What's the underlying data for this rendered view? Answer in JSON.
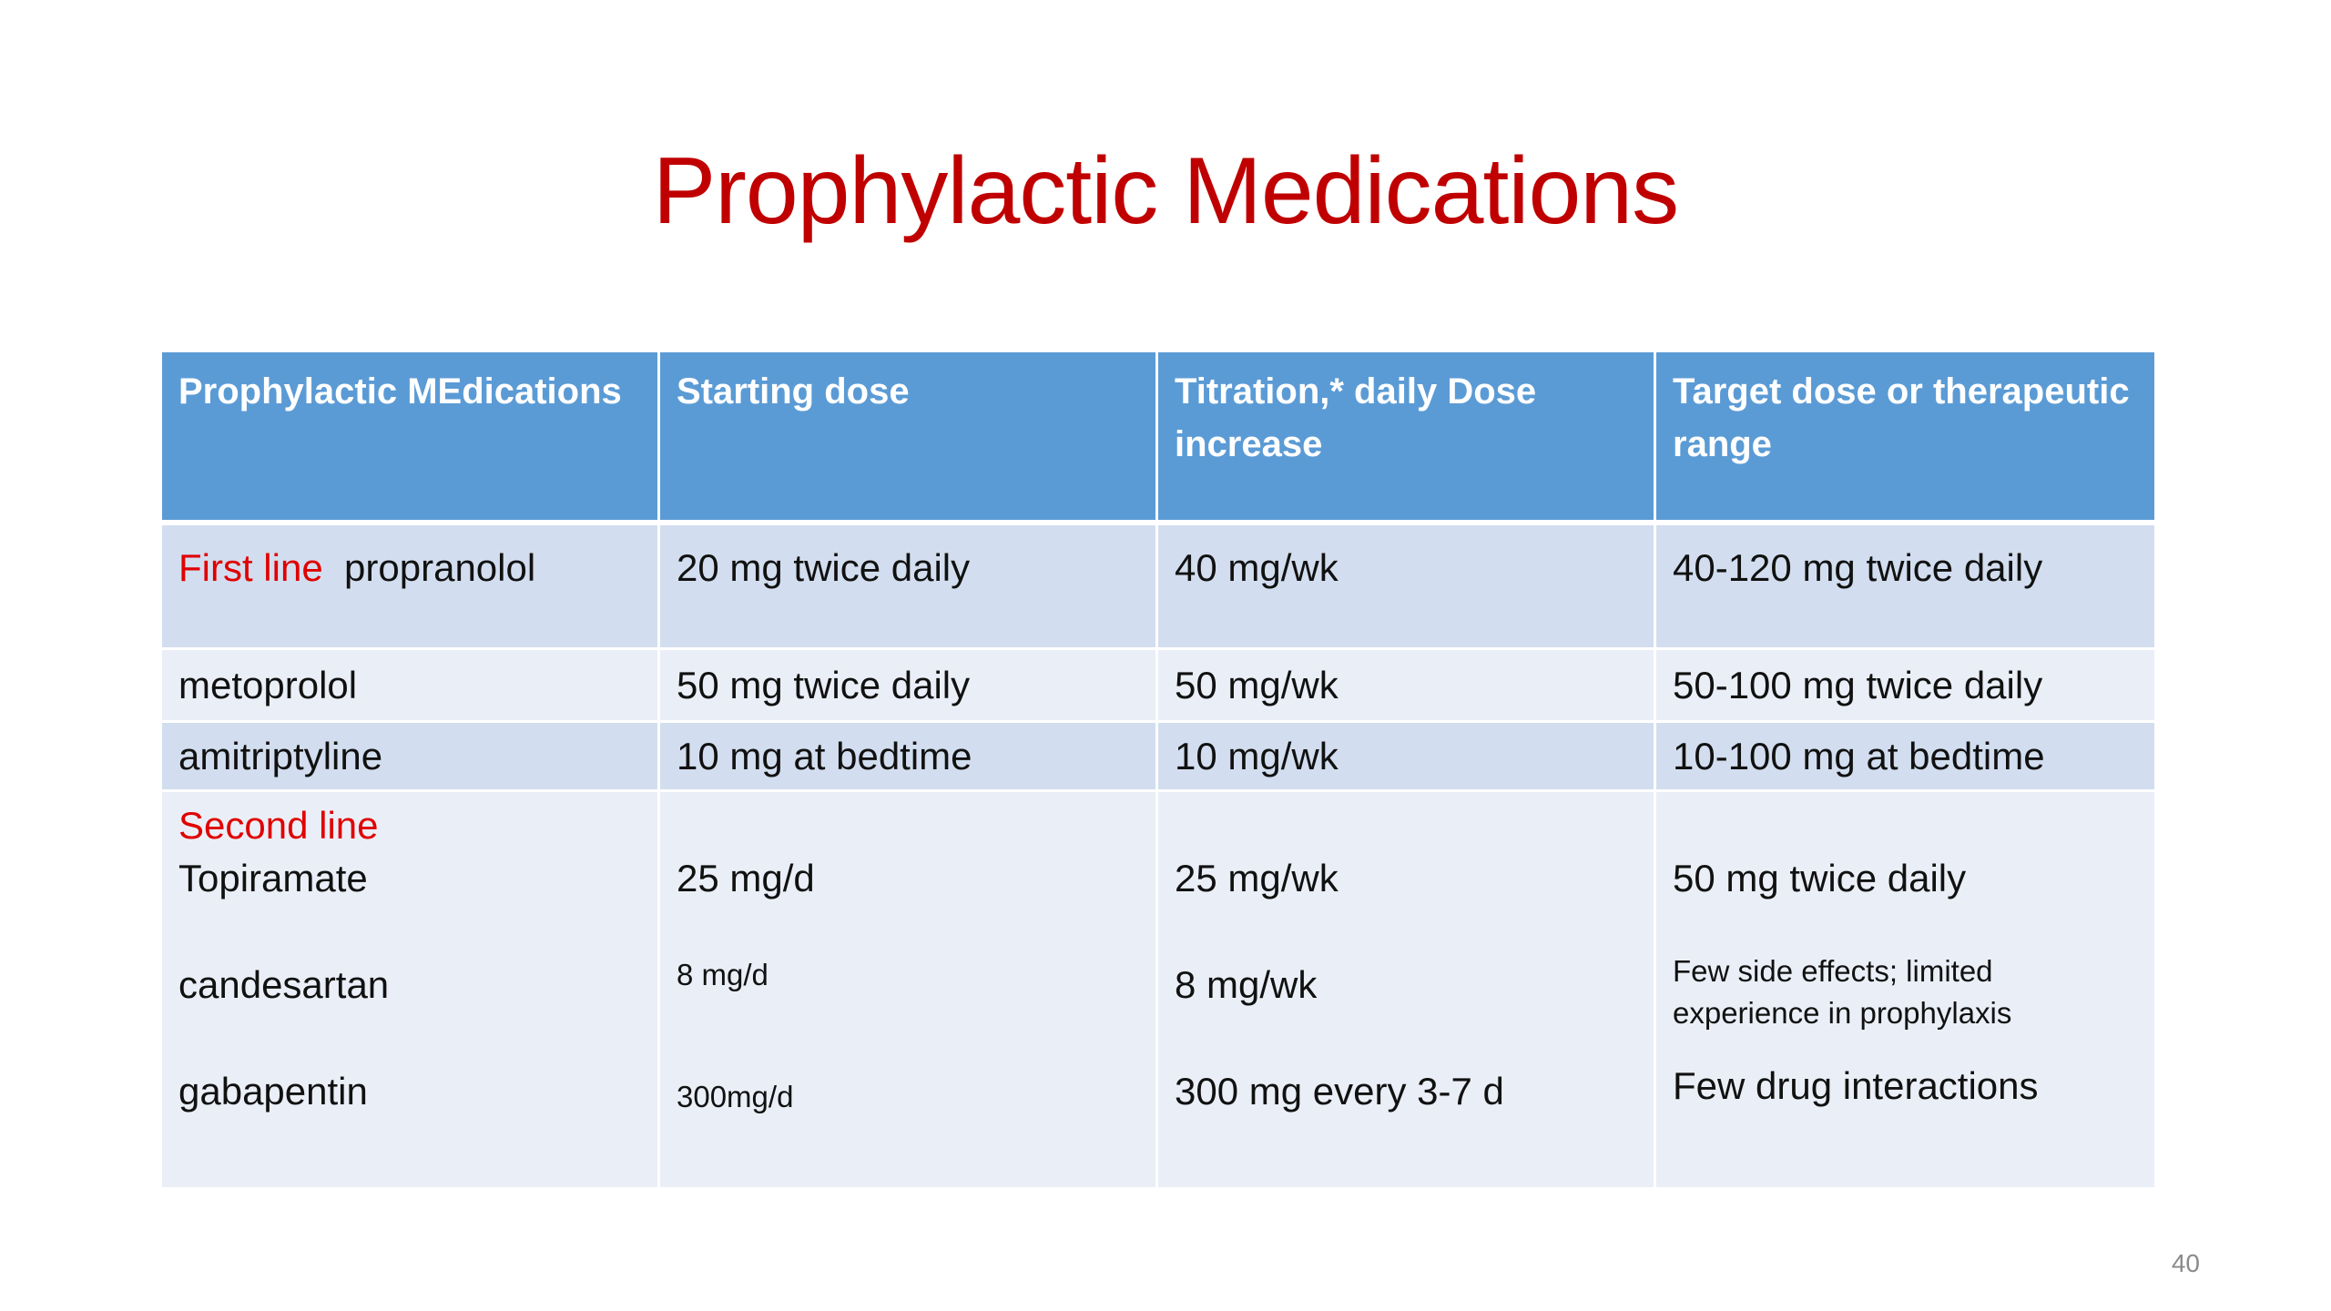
{
  "slide": {
    "title": "Prophylactic Medications",
    "page_number": "40"
  },
  "table": {
    "headers": [
      "Prophylactic MEdications",
      "Starting dose",
      "Titration,* daily Dose increase",
      "Target dose or therapeutic range"
    ],
    "rows": [
      {
        "label": "First line",
        "medication": "propranolol",
        "starting_dose": "20 mg twice daily",
        "titration": "40 mg/wk",
        "target": "40-120 mg twice daily"
      },
      {
        "medication": "metoprolol",
        "starting_dose": "50 mg twice daily",
        "titration": "50 mg/wk",
        "target": "50-100 mg twice daily"
      },
      {
        "medication": "amitriptyline",
        "starting_dose": "10 mg at bedtime",
        "titration": "10 mg/wk",
        "target": "10-100 mg at bedtime"
      }
    ],
    "second_line": {
      "label": "Second line",
      "items": [
        {
          "medication": "Topiramate",
          "starting_dose": "25 mg/d",
          "titration": "25 mg/wk",
          "target": "50 mg twice daily"
        },
        {
          "medication": "candesartan",
          "starting_dose": "8 mg/d",
          "titration": "8 mg/wk",
          "target": "Few side effects; limited experience in prophylaxis"
        },
        {
          "medication": "gabapentin",
          "starting_dose": "300mg/d",
          "titration": "300 mg every 3-7 d",
          "target": "Few drug interactions"
        }
      ]
    }
  },
  "colors": {
    "title": "#c00000",
    "header_bg": "#5b9bd5",
    "row_dark": "#d2deef",
    "row_light": "#eaeff7",
    "line_label": "#e00000"
  }
}
